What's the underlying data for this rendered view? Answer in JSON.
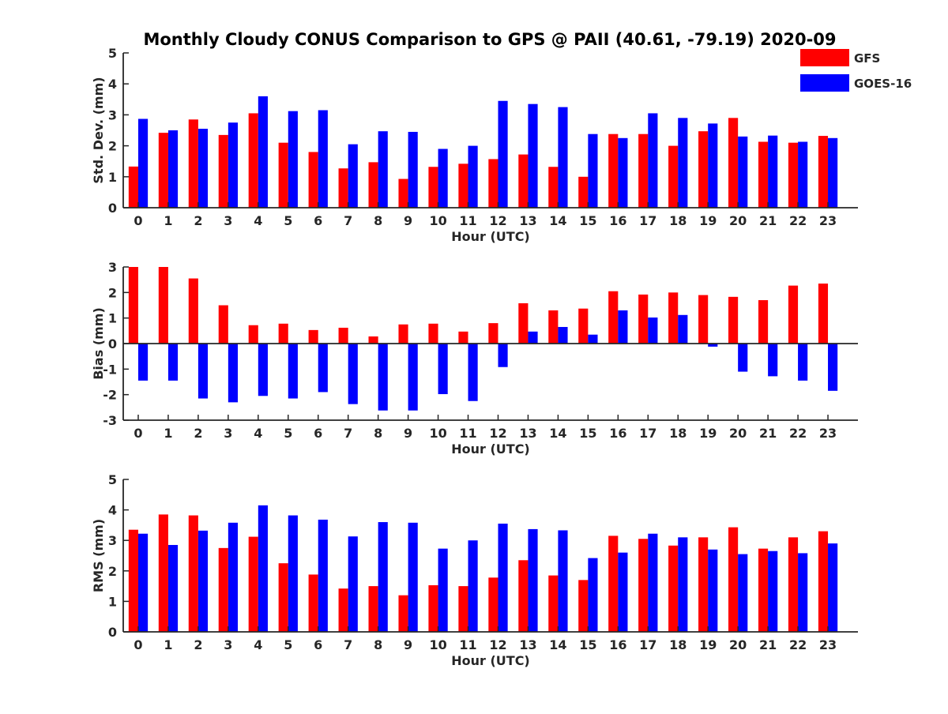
{
  "chart_data": {
    "title": "Monthly Cloudy CONUS Comparison to GPS @ PAII (40.61, -79.19) 2020-09",
    "legend": {
      "placement": "top-right",
      "entries": [
        {
          "name": "GFS",
          "color": "#ff0000"
        },
        {
          "name": "GOES-16",
          "color": "#0000ff"
        }
      ]
    },
    "panels": [
      {
        "type": "bar",
        "ylabel": "Std. Dev. (mm)",
        "xlabel": "Hour (UTC)",
        "ylim": [
          0,
          5
        ],
        "yticks": [
          0,
          1,
          2,
          3,
          4,
          5
        ],
        "categories": [
          "0",
          "1",
          "2",
          "3",
          "4",
          "5",
          "6",
          "7",
          "8",
          "9",
          "10",
          "11",
          "12",
          "13",
          "14",
          "15",
          "16",
          "17",
          "18",
          "19",
          "20",
          "21",
          "22",
          "23"
        ],
        "series": [
          {
            "name": "GFS",
            "color": "#ff0000",
            "values": [
              1.33,
              2.42,
              2.85,
              2.35,
              3.05,
              2.1,
              1.8,
              1.27,
              1.47,
              0.93,
              1.32,
              1.42,
              1.57,
              1.72,
              1.32,
              1.0,
              2.38,
              2.38,
              2.0,
              2.47,
              2.9,
              2.13,
              2.1,
              2.32
            ]
          },
          {
            "name": "GOES-16",
            "color": "#0000ff",
            "values": [
              2.87,
              2.5,
              2.55,
              2.75,
              3.6,
              3.12,
              3.15,
              2.05,
              2.47,
              2.45,
              1.9,
              2.0,
              3.45,
              3.35,
              3.25,
              2.38,
              2.25,
              3.05,
              2.9,
              2.72,
              2.3,
              2.33,
              2.13,
              2.25
            ]
          }
        ]
      },
      {
        "type": "bar",
        "ylabel": "Bias (mm)",
        "xlabel": "Hour (UTC)",
        "ylim": [
          -3,
          3
        ],
        "yticks": [
          -3,
          -2,
          -1,
          0,
          1,
          2,
          3
        ],
        "zero_line": true,
        "categories": [
          "0",
          "1",
          "2",
          "3",
          "4",
          "5",
          "6",
          "7",
          "8",
          "9",
          "10",
          "11",
          "12",
          "13",
          "14",
          "15",
          "16",
          "17",
          "18",
          "19",
          "20",
          "21",
          "22",
          "23"
        ],
        "series": [
          {
            "name": "GFS",
            "color": "#ff0000",
            "values": [
              3.0,
              3.0,
              2.55,
              1.5,
              0.72,
              0.78,
              0.53,
              0.62,
              0.28,
              0.75,
              0.78,
              0.47,
              0.8,
              1.58,
              1.3,
              1.37,
              2.05,
              1.92,
              2.0,
              1.9,
              1.83,
              1.7,
              2.27,
              2.35
            ]
          },
          {
            "name": "GOES-16",
            "color": "#0000ff",
            "values": [
              -1.45,
              -1.45,
              -2.15,
              -2.3,
              -2.05,
              -2.15,
              -1.9,
              -2.37,
              -2.62,
              -2.62,
              -1.98,
              -2.25,
              -0.92,
              0.47,
              0.65,
              0.35,
              1.3,
              1.02,
              1.12,
              -0.12,
              -1.1,
              -1.28,
              -1.45,
              -1.85
            ]
          }
        ]
      },
      {
        "type": "bar",
        "ylabel": "RMS (mm)",
        "xlabel": "Hour (UTC)",
        "ylim": [
          0,
          5
        ],
        "yticks": [
          0,
          1,
          2,
          3,
          4,
          5
        ],
        "categories": [
          "0",
          "1",
          "2",
          "3",
          "4",
          "5",
          "6",
          "7",
          "8",
          "9",
          "10",
          "11",
          "12",
          "13",
          "14",
          "15",
          "16",
          "17",
          "18",
          "19",
          "20",
          "21",
          "22",
          "23"
        ],
        "series": [
          {
            "name": "GFS",
            "color": "#ff0000",
            "values": [
              3.35,
              3.85,
              3.82,
              2.75,
              3.12,
              2.25,
              1.88,
              1.42,
              1.5,
              1.2,
              1.53,
              1.5,
              1.78,
              2.35,
              1.85,
              1.7,
              3.15,
              3.05,
              2.83,
              3.1,
              3.43,
              2.73,
              3.1,
              3.3
            ]
          },
          {
            "name": "GOES-16",
            "color": "#0000ff",
            "values": [
              3.22,
              2.85,
              3.32,
              3.58,
              4.15,
              3.82,
              3.68,
              3.13,
              3.6,
              3.58,
              2.73,
              3.0,
              3.55,
              3.37,
              3.33,
              2.42,
              2.6,
              3.22,
              3.1,
              2.7,
              2.55,
              2.65,
              2.58,
              2.9
            ]
          }
        ]
      }
    ]
  }
}
